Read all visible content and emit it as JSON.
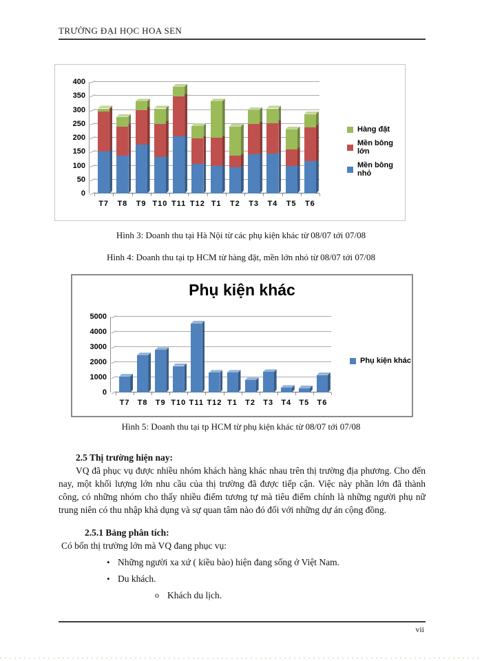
{
  "page": {
    "header": "TRƯỜNG ĐẠI HỌC HOA SEN",
    "footer_page_number": "vii"
  },
  "captions": {
    "fig3": "Hình 3: Doanh thu tại Hà Nội từ các phụ kiện khác từ 08/07 tới 07/08",
    "fig4": "Hình 4: Doanh thu tại tp HCM từ hàng đặt, mền lớn nhỏ từ 08/07 tới 07/08",
    "fig5": "Hình 5: Doanh thu tại tp HCM từ phụ kiện khác từ 08/07 tới 07/08"
  },
  "section": {
    "heading": "2.5 Thị trường hiện nay:",
    "paragraph": "VQ đã phục vụ được nhiều nhóm khách hàng khác nhau trên thị trường địa phương. Cho đến nay, một khối lượng lớn nhu cầu của thị trường đã được tiếp cận. Việc này phần lớn đã thành công, có những nhóm cho thấy nhiều điểm  tương tự mà tiêu điểm chính là những người phụ nữ trung niên có thu nhập khả dụng và sự quan tâm nào đó đối với những dự án cộng đồng.",
    "subheading": "2.5.1 Bảng phân tích:",
    "intro": "Có bốn thị trường lớn mà VQ đang phục vụ:",
    "bullets": [
      "Những người xa xứ ( kiều bào) hiện đang sống ở Việt Nam.",
      "Du khách."
    ],
    "sub_bullets": [
      "Khách du lịch."
    ]
  },
  "chart_data": [
    {
      "type": "bar",
      "stacked": true,
      "title": "",
      "categories": [
        "T7",
        "T8",
        "T9",
        "T10",
        "T11",
        "T12",
        "T1",
        "T2",
        "T3",
        "T4",
        "T5",
        "T6"
      ],
      "series": [
        {
          "name": "Mền bông nhỏ",
          "color": "#4F81BD",
          "values": [
            150,
            135,
            175,
            130,
            205,
            105,
            100,
            95,
            140,
            143,
            100,
            115
          ]
        },
        {
          "name": "Mền bông lớn",
          "color": "#C0504D",
          "values": [
            145,
            105,
            125,
            120,
            143,
            92,
            100,
            40,
            110,
            110,
            58,
            123
          ]
        },
        {
          "name": "Hàng đặt",
          "color": "#9BBB59",
          "values": [
            10,
            35,
            30,
            55,
            35,
            45,
            130,
            105,
            50,
            52,
            72,
            47
          ]
        }
      ],
      "xlabel": "",
      "ylabel": "",
      "ylim": [
        0,
        400
      ],
      "ytick_step": 50,
      "grid": true,
      "legend_position": "right"
    },
    {
      "type": "bar",
      "stacked": false,
      "title": "Phụ kiện khác",
      "categories": [
        "T7",
        "T8",
        "T9",
        "T10",
        "T11",
        "T12",
        "T1",
        "T2",
        "T3",
        "T4",
        "T5",
        "T6"
      ],
      "series": [
        {
          "name": "Phụ kiện khác",
          "color": "#4F81BD",
          "values": [
            1050,
            2450,
            2800,
            1750,
            4550,
            1300,
            1300,
            800,
            1350,
            300,
            280,
            1150
          ]
        }
      ],
      "xlabel": "",
      "ylabel": "",
      "ylim": [
        0,
        5000
      ],
      "ytick_step": 1000,
      "grid": true,
      "legend_position": "right"
    }
  ]
}
